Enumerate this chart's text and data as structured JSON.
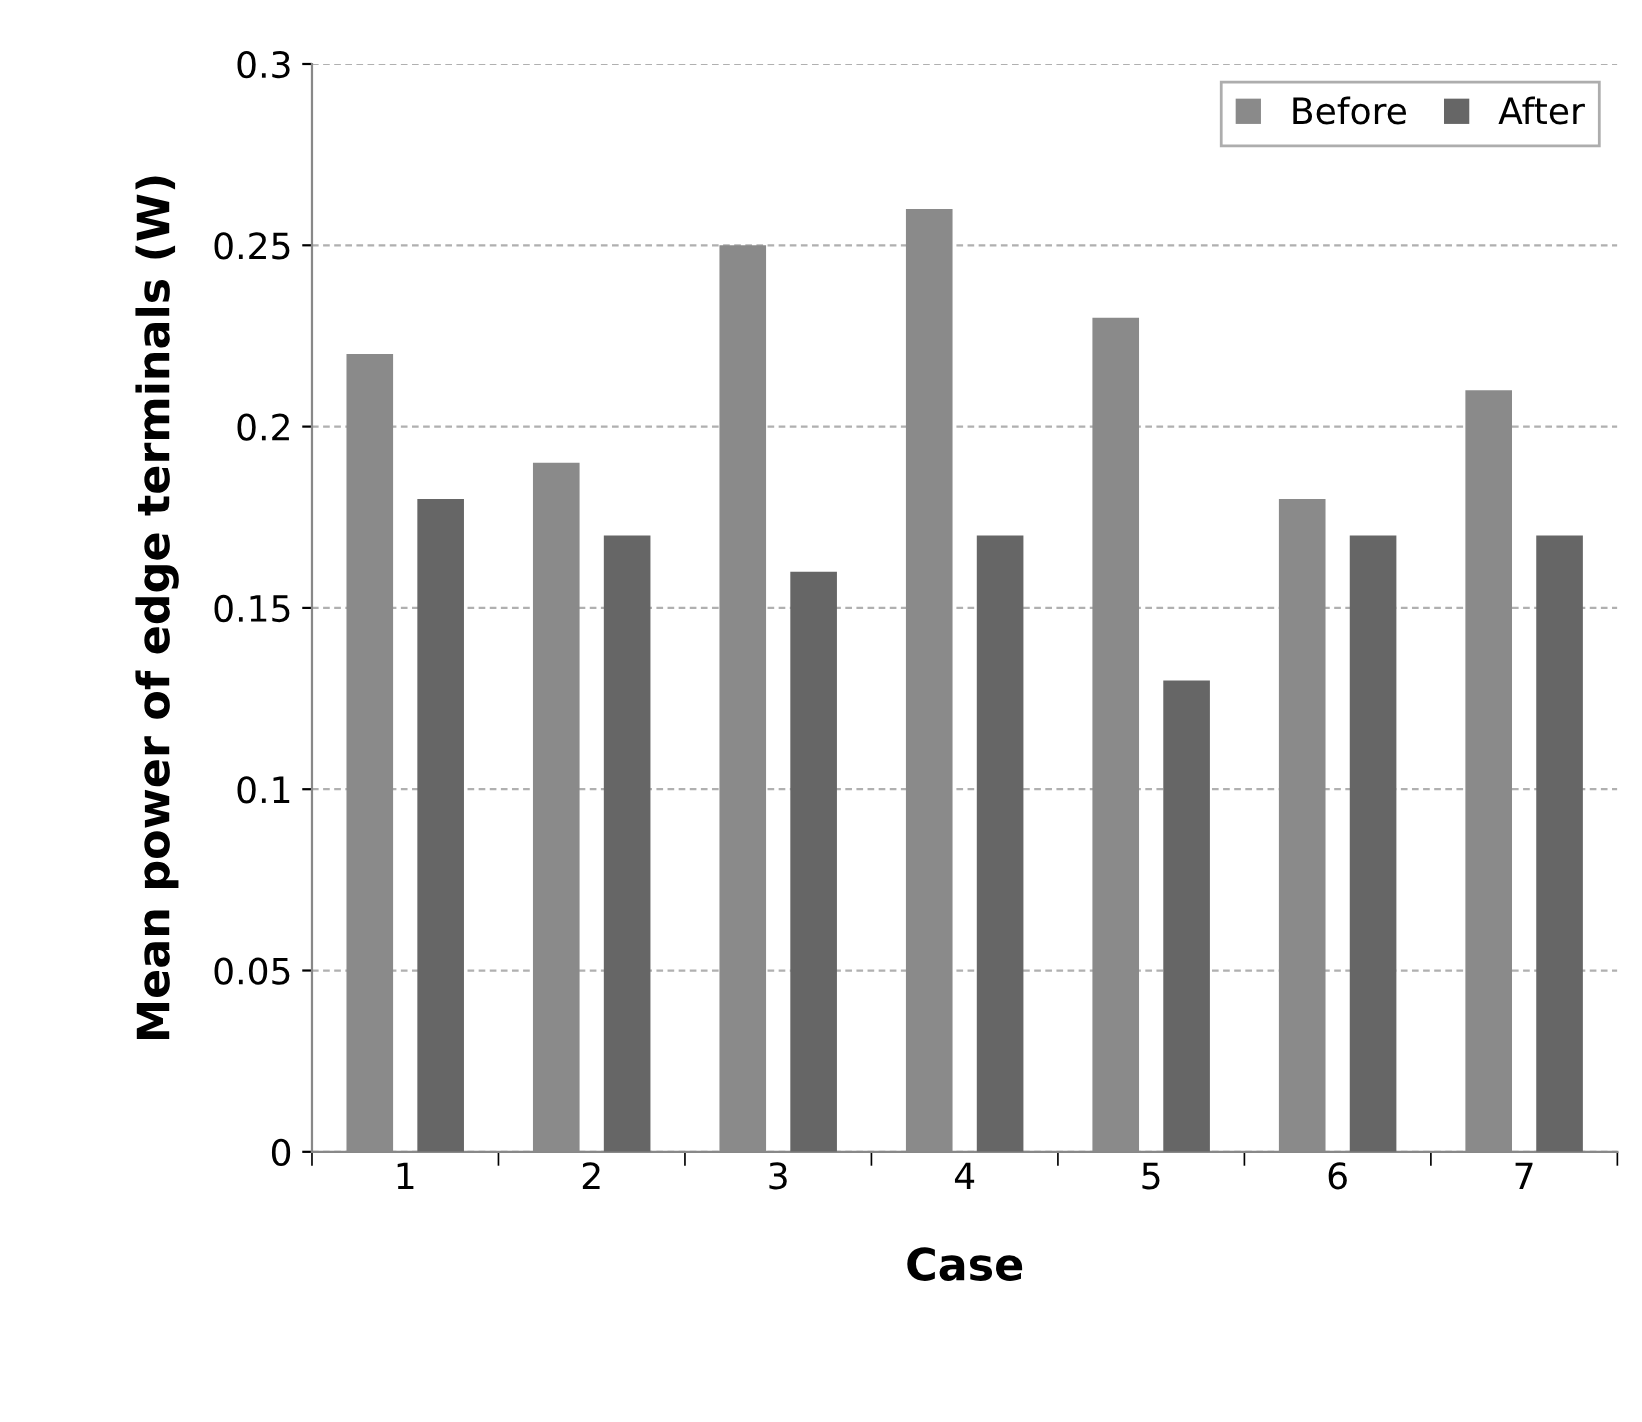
{
  "chart_data": {
    "type": "bar",
    "xlabel": "Case",
    "ylabel": "Mean power of edge terminals (W)",
    "categories": [
      "1",
      "2",
      "3",
      "4",
      "5",
      "6",
      "7"
    ],
    "series": [
      {
        "name": "Before",
        "color": "#8a8a8a",
        "values": [
          0.22,
          0.19,
          0.25,
          0.26,
          0.23,
          0.18,
          0.21
        ]
      },
      {
        "name": "After",
        "color": "#666666",
        "values": [
          0.18,
          0.17,
          0.16,
          0.17,
          0.13,
          0.17,
          0.17
        ]
      }
    ],
    "ylim": [
      0,
      0.3
    ],
    "yticks": [
      0,
      0.05,
      0.1,
      0.15,
      0.2,
      0.25,
      0.3
    ],
    "grid": "y",
    "legend": "top right"
  }
}
